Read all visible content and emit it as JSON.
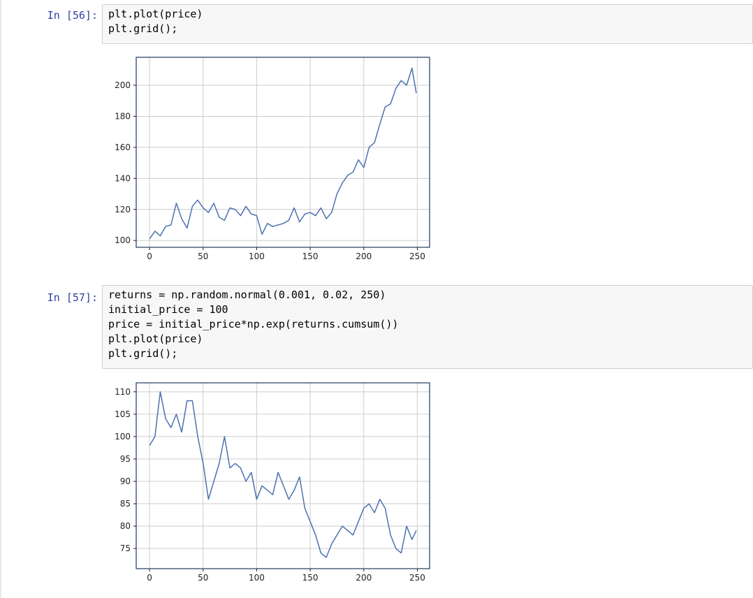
{
  "cells": [
    {
      "prompt": "In [56]:",
      "code_lines": [
        "plt.plot(price)",
        "plt.grid();"
      ]
    },
    {
      "prompt": "In [57]:",
      "code_lines": [
        "returns = np.random.normal(0.001, 0.02, 250)",
        "initial_price = 100",
        "price = initial_price*np.exp(returns.cumsum())",
        "plt.plot(price)",
        "plt.grid();"
      ]
    }
  ],
  "colors": {
    "line": "#4c72b0",
    "prompt": "#303f9f",
    "grid": "#cccccc",
    "cell_bg": "#f7f7f7"
  },
  "chart_data": [
    {
      "type": "line",
      "title": "",
      "xlabel": "",
      "ylabel": "",
      "grid": true,
      "xlim": [
        -12.45,
        261.45
      ],
      "ylim": [
        95.6,
        218
      ],
      "x_ticks": [
        0,
        50,
        100,
        150,
        200,
        250
      ],
      "y_ticks": [
        100,
        120,
        140,
        160,
        180,
        200
      ],
      "x_tick_labels": [
        "0",
        "50",
        "100",
        "150",
        "200",
        "250"
      ],
      "y_tick_labels": [
        "100",
        "120",
        "140",
        "160",
        "180",
        "200"
      ],
      "series": [
        {
          "x": [
            0,
            5,
            10,
            15,
            20,
            25,
            30,
            35,
            40,
            45,
            50,
            55,
            60,
            65,
            70,
            75,
            80,
            85,
            90,
            95,
            100,
            105,
            110,
            115,
            120,
            125,
            130,
            135,
            140,
            145,
            150,
            155,
            160,
            165,
            170,
            175,
            180,
            185,
            190,
            195,
            200,
            205,
            210,
            215,
            220,
            225,
            230,
            235,
            240,
            245,
            249
          ],
          "values": [
            101,
            106,
            103,
            109,
            110,
            124,
            114,
            108,
            122,
            126,
            121,
            118,
            124,
            115,
            113,
            121,
            120,
            116,
            122,
            117,
            116,
            104,
            111,
            109,
            110,
            111,
            113,
            121,
            112,
            117,
            118,
            116,
            121,
            114,
            118,
            130,
            137,
            142,
            144,
            152,
            147,
            160,
            163,
            175,
            186,
            188,
            198,
            203,
            200,
            211,
            195
          ]
        }
      ]
    },
    {
      "type": "line",
      "title": "",
      "xlabel": "",
      "ylabel": "",
      "grid": true,
      "xlim": [
        -12.45,
        261.45
      ],
      "ylim": [
        70.5,
        112
      ],
      "x_ticks": [
        0,
        50,
        100,
        150,
        200,
        250
      ],
      "y_ticks": [
        75,
        80,
        85,
        90,
        95,
        100,
        105,
        110
      ],
      "x_tick_labels": [
        "0",
        "50",
        "100",
        "150",
        "200",
        "250"
      ],
      "y_tick_labels": [
        "75",
        "80",
        "85",
        "90",
        "95",
        "100",
        "105",
        "110"
      ],
      "series": [
        {
          "x": [
            0,
            5,
            10,
            15,
            20,
            25,
            30,
            35,
            40,
            45,
            50,
            55,
            60,
            65,
            70,
            75,
            80,
            85,
            90,
            95,
            100,
            105,
            110,
            115,
            120,
            125,
            130,
            135,
            140,
            145,
            150,
            155,
            160,
            165,
            170,
            175,
            180,
            185,
            190,
            195,
            200,
            205,
            210,
            215,
            220,
            225,
            230,
            235,
            240,
            245,
            249
          ],
          "values": [
            98,
            100,
            110,
            104,
            102,
            105,
            101,
            108,
            108,
            100,
            94,
            86,
            90,
            94,
            100,
            93,
            94,
            93,
            90,
            92,
            86,
            89,
            88,
            87,
            92,
            89,
            86,
            88,
            91,
            84,
            81,
            78,
            74,
            73,
            76,
            78,
            80,
            79,
            78,
            81,
            84,
            85,
            83,
            86,
            84,
            78,
            75,
            74,
            80,
            77,
            79
          ]
        }
      ]
    }
  ]
}
